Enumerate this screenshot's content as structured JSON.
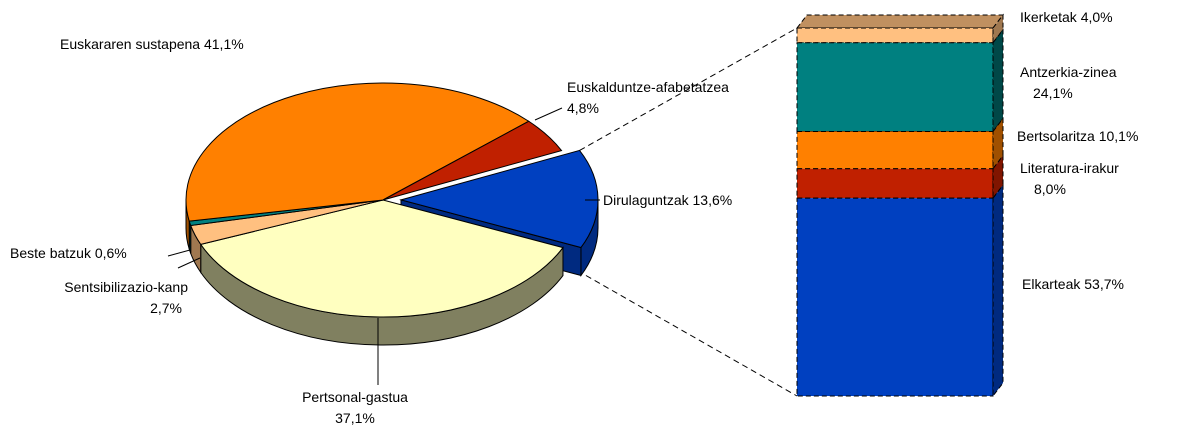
{
  "chart_data": [
    {
      "type": "pie",
      "categories": [
        "Dirulaguntzak",
        "Pertsonal-gastua",
        "Sentsibilizazio-kanp",
        "Beste batzuk",
        "Euskararen sustapena",
        "Euskalduntze-afabetatzea"
      ],
      "values": [
        13.6,
        37.1,
        2.7,
        0.6,
        41.1,
        4.8
      ],
      "value_labels": [
        "13,6%",
        "37,1%",
        "2,7%",
        "0,6%",
        "41,1%",
        "4,8%"
      ],
      "colors": [
        "#0040c0",
        "#ffffc0",
        "#ffc080",
        "#008080",
        "#ff8000",
        "#c02000"
      ],
      "side_colors": [
        "#002a80",
        "#808060",
        "#a07850",
        "#004848",
        "#a05000",
        "#801500"
      ],
      "exploded": 0
    },
    {
      "type": "bar",
      "stacked": true,
      "categories": [
        "Ikerketak",
        "Antzerkia-zinea",
        "Bertsolaritza",
        "Literatura-irakur",
        "Elkarteak"
      ],
      "values": [
        4.0,
        24.1,
        10.1,
        8.0,
        53.7
      ],
      "value_labels": [
        "4,0%",
        "24,1%",
        "10,1%",
        "8,0%",
        "53,7%"
      ],
      "colors": [
        "#ffc080",
        "#008080",
        "#ff8000",
        "#c02000",
        "#0040c0"
      ],
      "side_colors": [
        "#a07850",
        "#004848",
        "#a05000",
        "#801500",
        "#002a80"
      ]
    }
  ]
}
